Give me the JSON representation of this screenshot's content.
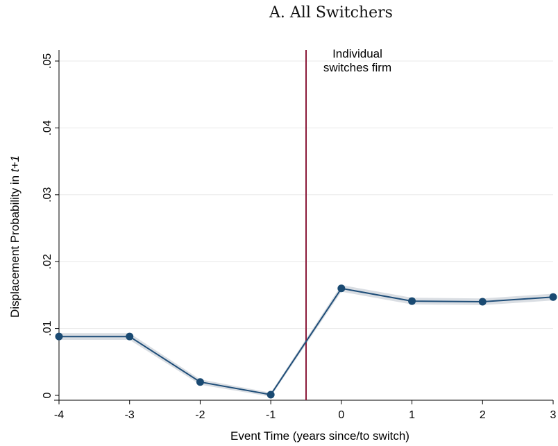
{
  "chart_data": {
    "type": "line",
    "title": "A. All Switchers",
    "xlabel": "Event Time (years since/to switch)",
    "ylabel_main": "Displacement Probability in ",
    "ylabel_italic": "t+1",
    "x": [
      -4,
      -3,
      -2,
      -1,
      0,
      1,
      2,
      3
    ],
    "x_ticks": [
      "-4",
      "-3",
      "-2",
      "-1",
      "0",
      "1",
      "2",
      "3"
    ],
    "y_ticks": [
      0,
      0.01,
      0.02,
      0.03,
      0.04,
      0.05
    ],
    "y_tick_labels": [
      "0",
      ".01",
      ".02",
      ".03",
      ".04",
      ".05"
    ],
    "xlim": [
      -4,
      3
    ],
    "ylim": [
      0,
      0.05
    ],
    "series": [
      {
        "values": [
          0.0088,
          0.0088,
          0.002,
          0.0001,
          0.016,
          0.0141,
          0.014,
          0.0147
        ]
      }
    ],
    "ci_halfwidth": [
      0.0005,
      0.0005,
      0.0004,
      0.0003,
      0.0005,
      0.0005,
      0.0005,
      0.0005
    ],
    "vline": {
      "x": -0.5,
      "color": "#8b1a3a"
    },
    "annotation": {
      "lines": [
        "Individual",
        "switches firm"
      ]
    },
    "colors": {
      "line": "#1f4e79",
      "marker": "#1a4a72",
      "ci": "#d3d8de",
      "grid": "#e8e8e8"
    },
    "grid": true
  }
}
